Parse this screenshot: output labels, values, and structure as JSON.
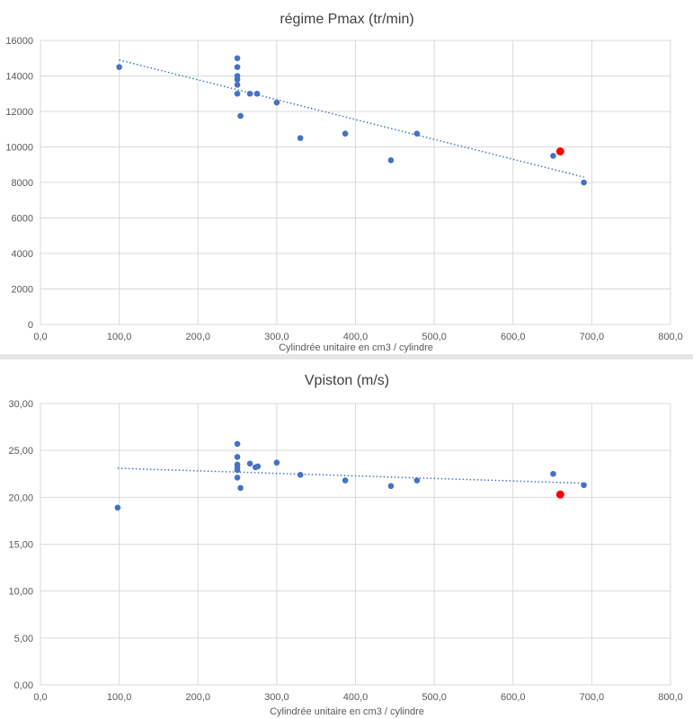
{
  "chart_data": [
    {
      "type": "scatter",
      "title": "régime Pmax (tr/min)",
      "xlabel": "Cylindrée unitaire en cm3 / cylindre",
      "ylabel": "",
      "xlim": [
        0,
        800
      ],
      "ylim": [
        0,
        16000
      ],
      "xticks": [
        "0,0",
        "100,0",
        "200,0",
        "300,0",
        "400,0",
        "500,0",
        "600,0",
        "700,0",
        "800,0"
      ],
      "yticks": [
        "0",
        "2000",
        "4000",
        "6000",
        "8000",
        "10000",
        "12000",
        "14000",
        "16000"
      ],
      "grid": true,
      "trendline": {
        "type": "linear",
        "x": [
          100,
          690
        ],
        "y": [
          14900,
          8300
        ]
      },
      "series": [
        {
          "color": "#4472c4",
          "points": [
            [
              100,
              14500
            ],
            [
              250,
              15000
            ],
            [
              250,
              14500
            ],
            [
              250,
              14000
            ],
            [
              250,
              13800
            ],
            [
              250,
              13500
            ],
            [
              250,
              13000
            ],
            [
              254,
              11750
            ],
            [
              266,
              13000
            ],
            [
              275,
              13000
            ],
            [
              300,
              12500
            ],
            [
              330,
              10500
            ],
            [
              387,
              10750
            ],
            [
              445,
              9250
            ],
            [
              478,
              10750
            ],
            [
              651,
              9500
            ],
            [
              690,
              8000
            ]
          ]
        },
        {
          "color": "#ff0000",
          "points": [
            [
              660,
              9750
            ]
          ]
        }
      ]
    },
    {
      "type": "scatter",
      "title": "Vpiston (m/s)",
      "xlabel": "Cylindrée unitaire en cm3 / cylindre",
      "ylabel": "",
      "xlim": [
        0,
        800
      ],
      "ylim": [
        0,
        30
      ],
      "xticks": [
        "0,0",
        "100,0",
        "200,0",
        "300,0",
        "400,0",
        "500,0",
        "600,0",
        "700,0",
        "800,0"
      ],
      "yticks": [
        "0,00",
        "5,00",
        "10,00",
        "15,00",
        "20,00",
        "25,00",
        "30,00"
      ],
      "grid": true,
      "trendline": {
        "type": "linear",
        "x": [
          98,
          690
        ],
        "y": [
          23.1,
          21.5
        ]
      },
      "series": [
        {
          "color": "#4472c4",
          "points": [
            [
              98,
              18.9
            ],
            [
              250,
              25.7
            ],
            [
              250,
              24.3
            ],
            [
              250,
              23.5
            ],
            [
              250,
              23.2
            ],
            [
              250,
              22.9
            ],
            [
              250,
              22.1
            ],
            [
              254,
              21.0
            ],
            [
              266,
              23.6
            ],
            [
              273,
              23.2
            ],
            [
              276,
              23.3
            ],
            [
              300,
              23.7
            ],
            [
              330,
              22.4
            ],
            [
              387,
              21.8
            ],
            [
              445,
              21.2
            ],
            [
              478,
              21.8
            ],
            [
              651,
              22.5
            ],
            [
              690,
              21.3
            ]
          ]
        },
        {
          "color": "#ff0000",
          "points": [
            [
              660,
              20.3
            ]
          ]
        }
      ]
    }
  ]
}
